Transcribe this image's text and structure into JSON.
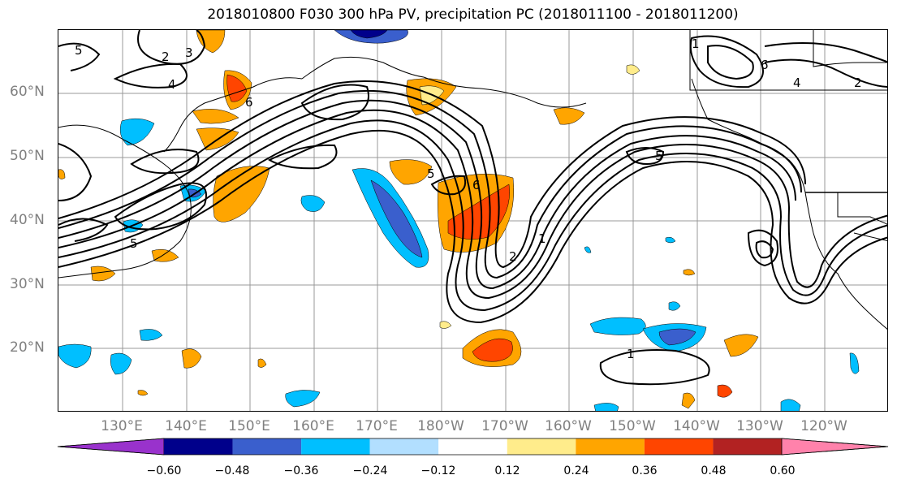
{
  "title": "2018010800 F030 300 hPa PV, precipitation PC (2018011100 - 2018011200)",
  "lat_labels": [
    "60°N",
    "50°N",
    "40°N",
    "30°N",
    "20°N"
  ],
  "lon_labels": [
    "130°E",
    "140°E",
    "150°E",
    "160°E",
    "170°E",
    "180°W",
    "170°W",
    "160°W",
    "150°W",
    "140°W",
    "130°W",
    "120°W"
  ],
  "colorbar": {
    "tick_labels": [
      "−0.60",
      "−0.48",
      "−0.36",
      "−0.24",
      "−0.12",
      "0.12",
      "0.24",
      "0.36",
      "0.48",
      "0.60"
    ],
    "colors": [
      "#9932CC",
      "#00008B",
      "#3A5FCD",
      "#00BFFF",
      "#B2DFFF",
      "#FFFFFF",
      "#FFEC8B",
      "#FFA500",
      "#FF4500",
      "#B22222",
      "#FF82AB"
    ]
  },
  "contour_labels": {
    "l1": "1",
    "l2": "2",
    "l3": "3",
    "l4": "4",
    "l5": "5",
    "l5b": "5",
    "l5c": "5",
    "l5d": "5",
    "l6": "6",
    "l6b": "6",
    "l1b": "1",
    "l1c": "1",
    "l2b": "2",
    "l4b": "4",
    "l2c": "2",
    "l6c": "6"
  },
  "extent": {
    "lon_min": "120°E",
    "lon_max": "110°W",
    "lat_min": "10°N",
    "lat_max": "70°N"
  }
}
